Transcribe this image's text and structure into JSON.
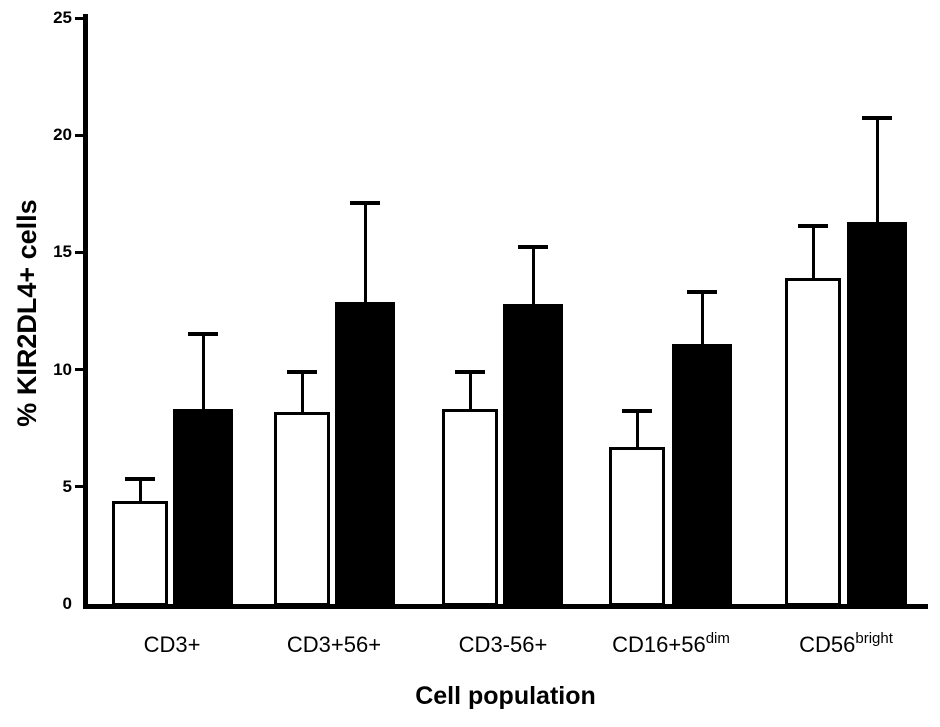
{
  "chart_data": {
    "type": "bar",
    "title": "",
    "xlabel": "Cell population",
    "ylabel": "% KIR2DL4+ cells",
    "ylim": [
      0,
      25
    ],
    "yticks": [
      0,
      5,
      10,
      15,
      20,
      25
    ],
    "grid": false,
    "legend": "none",
    "error_bars": "upper only",
    "categories": [
      "CD3+",
      "CD3+56+",
      "CD3-56+",
      "CD16+56dim",
      "CD56bright"
    ],
    "category_labels": [
      {
        "base": "CD3+",
        "sup": ""
      },
      {
        "base": "CD3+56+",
        "sup": ""
      },
      {
        "base": "CD3-56+",
        "sup": ""
      },
      {
        "base": "CD16+56",
        "sup": "dim"
      },
      {
        "base": "CD56",
        "sup": "bright"
      }
    ],
    "series": [
      {
        "name": "open bars (white fill)",
        "fill": "#ffffff",
        "stroke": "#000000",
        "values": [
          4.4,
          8.2,
          8.3,
          6.7,
          13.9
        ],
        "errors_plus": [
          1.0,
          1.8,
          1.7,
          1.6,
          2.3
        ]
      },
      {
        "name": "filled bars (black fill)",
        "fill": "#000000",
        "stroke": "#000000",
        "values": [
          8.3,
          12.9,
          12.8,
          11.1,
          16.3
        ],
        "errors_plus": [
          3.3,
          4.3,
          2.5,
          2.3,
          4.5
        ]
      }
    ],
    "colors": {
      "foreground": "#000000",
      "background": "#ffffff"
    }
  }
}
